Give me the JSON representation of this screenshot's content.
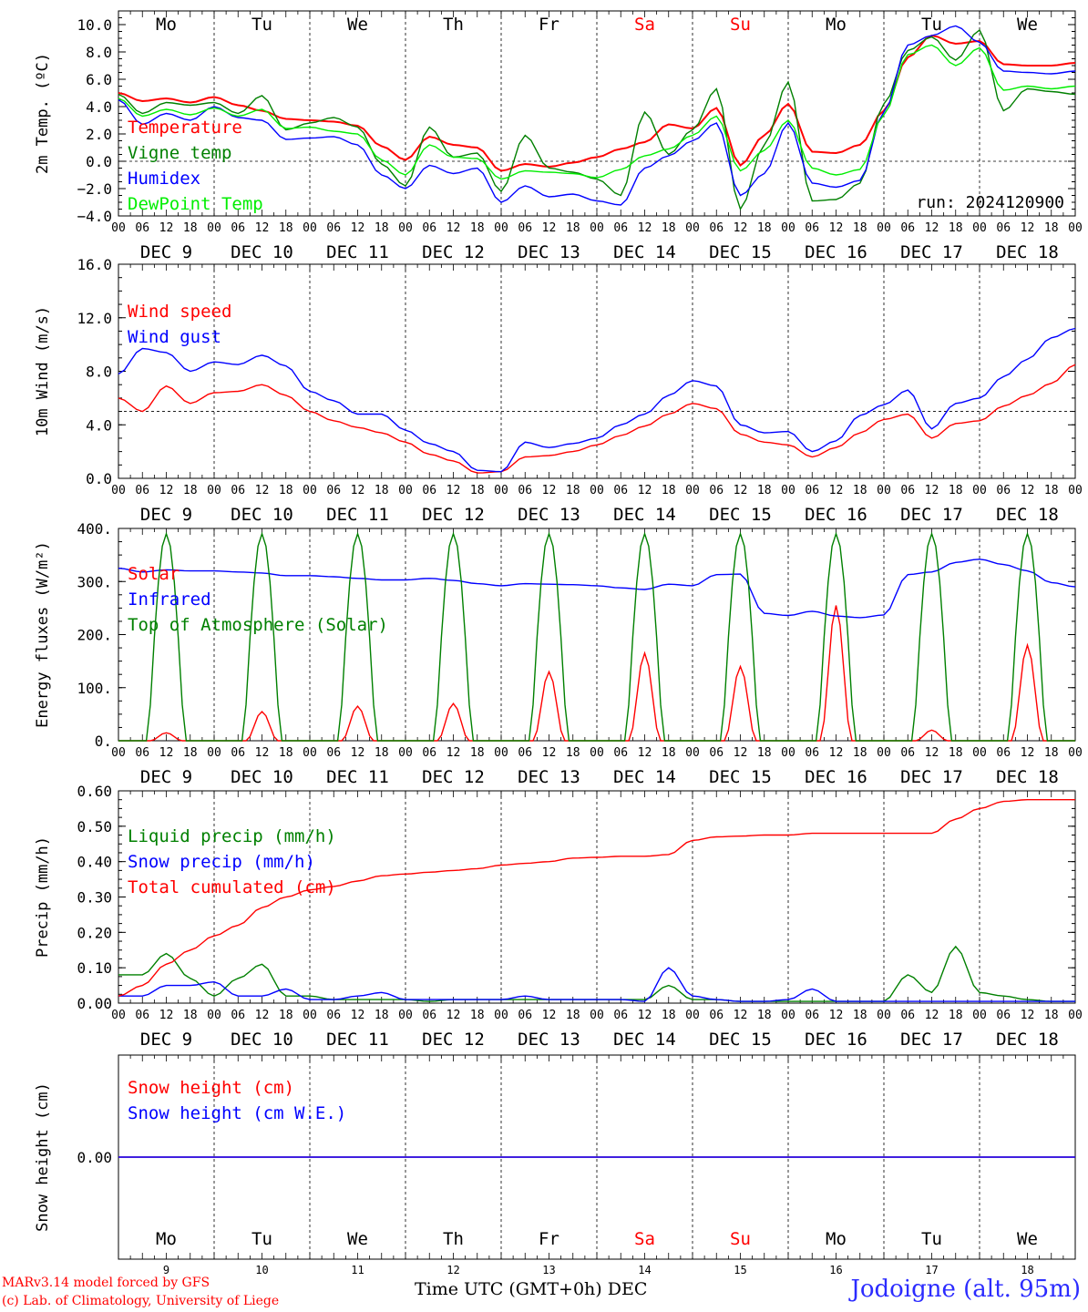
{
  "weekdays": [
    "Mo",
    "Tu",
    "We",
    "Th",
    "Fr",
    "Sa",
    "Su",
    "Mo",
    "Tu",
    "We"
  ],
  "weekday_colors": [
    "#000000",
    "#000000",
    "#000000",
    "#000000",
    "#000000",
    "#ff0000",
    "#ff0000",
    "#000000",
    "#000000",
    "#000000"
  ],
  "day_labels": [
    "DEC  9",
    "DEC 10",
    "DEC 11",
    "DEC 12",
    "DEC 13",
    "DEC 14",
    "DEC 15",
    "DEC 16",
    "DEC 17",
    "DEC 18"
  ],
  "hour_ticks": [
    "00",
    "06",
    "12",
    "18"
  ],
  "last_hour_tick": "00",
  "bottom_day_numbers": [
    "9",
    "10",
    "11",
    "12",
    "13",
    "14",
    "15",
    "16",
    "17",
    "18"
  ],
  "footer": {
    "model": "MARv3.14 model forced by GFS",
    "lab": "(c) Lab. of Climatology, University of Liege",
    "axis_title": "Time UTC (GMT+0h) DEC",
    "station": "Jodoigne (alt. 95m)"
  },
  "chart_data": [
    {
      "type": "line",
      "ylabel": "2m Temp. (ºC)",
      "ylim": [
        -4,
        11
      ],
      "yticks": [
        -4,
        -2,
        0,
        2,
        4,
        6,
        8,
        10
      ],
      "tick_labels": [
        "−4.0",
        "−2.0",
        "0.0",
        "2.0",
        "4.0",
        "6.0",
        "8.0",
        "10.0"
      ],
      "reference_line": 0,
      "annotation": "run: 2024120900",
      "x_unit": "hours since DEC 9 00 UTC",
      "x": [
        0,
        6,
        12,
        18,
        24,
        30,
        36,
        42,
        48,
        54,
        60,
        66,
        72,
        78,
        84,
        90,
        96,
        102,
        108,
        114,
        120,
        126,
        132,
        138,
        144,
        150,
        156,
        162,
        168,
        174,
        180,
        186,
        192,
        198,
        204,
        210,
        216,
        222,
        228,
        234,
        240
      ],
      "series": [
        {
          "name": "Temperature",
          "color": "#ff0000",
          "values": [
            5.0,
            4.4,
            4.6,
            4.3,
            4.7,
            4.1,
            3.7,
            3.1,
            3.0,
            2.9,
            2.6,
            1.1,
            0.1,
            1.8,
            1.2,
            1.0,
            -0.7,
            -0.2,
            -0.4,
            -0.1,
            0.3,
            0.9,
            1.4,
            2.7,
            2.4,
            3.9,
            -0.3,
            1.9,
            4.2,
            0.7,
            0.6,
            1.2,
            3.7,
            7.6,
            9.2,
            8.6,
            8.8,
            7.1,
            7.0,
            7.0,
            7.2
          ]
        },
        {
          "name": "Vigne temp",
          "color": "#008000",
          "values": [
            4.9,
            3.5,
            4.3,
            4.1,
            4.3,
            3.5,
            4.8,
            2.3,
            2.8,
            3.2,
            2.5,
            -0.2,
            -1.8,
            2.5,
            0.3,
            0.6,
            -2.2,
            1.9,
            -0.5,
            -0.8,
            -1.3,
            -2.5,
            3.6,
            0.5,
            2.3,
            5.3,
            -3.5,
            1.2,
            5.8,
            -2.9,
            -2.8,
            -1.6,
            4.2,
            8.1,
            9.1,
            7.4,
            9.6,
            3.7,
            5.3,
            5.1,
            4.9
          ]
        },
        {
          "name": "Humidex",
          "color": "#0000ff",
          "values": [
            4.5,
            2.7,
            3.5,
            3.0,
            4.0,
            3.2,
            3.0,
            1.6,
            1.7,
            1.8,
            1.2,
            -1.0,
            -2.0,
            -0.3,
            -0.9,
            -0.5,
            -3.0,
            -1.8,
            -2.6,
            -2.4,
            -2.9,
            -3.2,
            -0.5,
            0.4,
            1.5,
            2.8,
            -2.5,
            -0.9,
            2.8,
            -1.6,
            -1.9,
            -1.4,
            3.6,
            8.5,
            9.2,
            9.9,
            8.7,
            6.6,
            6.5,
            6.4,
            6.6
          ]
        },
        {
          "name": "DewPoint Temp",
          "color": "#00ee00",
          "values": [
            4.6,
            3.3,
            3.8,
            3.4,
            3.9,
            3.3,
            3.8,
            2.4,
            2.5,
            2.2,
            2.0,
            0.1,
            -1.0,
            1.2,
            0.3,
            0.2,
            -1.3,
            -0.7,
            -0.8,
            -0.9,
            -1.2,
            -0.6,
            0.4,
            0.9,
            1.9,
            3.3,
            -0.7,
            0.8,
            3.0,
            -0.5,
            -1.0,
            -0.6,
            3.4,
            7.8,
            8.5,
            7.0,
            8.3,
            5.2,
            5.5,
            5.3,
            5.5
          ]
        }
      ]
    },
    {
      "type": "line",
      "ylabel": "10m Wind (m/s)",
      "ylim": [
        0,
        16
      ],
      "yticks": [
        0,
        4,
        8,
        12,
        16
      ],
      "tick_labels": [
        "0.0",
        "4.0",
        "8.0",
        "12.0",
        "16.0"
      ],
      "reference_line": 5,
      "x_unit": "hours since DEC 9 00 UTC",
      "x": [
        0,
        6,
        12,
        18,
        24,
        30,
        36,
        42,
        48,
        54,
        60,
        66,
        72,
        78,
        84,
        90,
        96,
        102,
        108,
        114,
        120,
        126,
        132,
        138,
        144,
        150,
        156,
        162,
        168,
        174,
        180,
        186,
        192,
        198,
        204,
        210,
        216,
        222,
        228,
        234,
        240
      ],
      "series": [
        {
          "name": "Wind speed",
          "color": "#ff0000",
          "values": [
            6.0,
            5.0,
            6.9,
            5.6,
            6.4,
            6.5,
            7.0,
            6.2,
            5.0,
            4.3,
            3.8,
            3.4,
            2.7,
            1.8,
            1.3,
            0.4,
            0.5,
            1.6,
            1.7,
            2.0,
            2.5,
            3.2,
            3.9,
            4.8,
            5.6,
            5.2,
            3.3,
            2.7,
            2.5,
            1.6,
            2.3,
            3.4,
            4.4,
            4.8,
            3.0,
            4.1,
            4.3,
            5.4,
            6.2,
            7.1,
            8.5
          ]
        },
        {
          "name": "Wind gust",
          "color": "#0000ff",
          "values": [
            7.8,
            9.7,
            9.4,
            8.0,
            8.7,
            8.5,
            9.2,
            8.4,
            6.5,
            5.8,
            4.8,
            4.8,
            3.6,
            2.6,
            2.0,
            0.6,
            0.5,
            2.7,
            2.3,
            2.6,
            3.0,
            4.0,
            4.8,
            6.2,
            7.3,
            6.9,
            4.0,
            3.4,
            3.5,
            2.0,
            2.8,
            4.7,
            5.5,
            6.6,
            3.7,
            5.6,
            6.0,
            7.6,
            8.9,
            10.5,
            11.2
          ]
        }
      ]
    },
    {
      "type": "line",
      "ylabel": "Energy fluxes (W/m²)",
      "ylim": [
        0,
        400
      ],
      "yticks": [
        0,
        100,
        200,
        300,
        400
      ],
      "tick_labels": [
        "0.",
        "100.",
        "200.",
        "300.",
        "400."
      ],
      "x_unit": "hours since DEC 9 00 UTC",
      "x": [
        0,
        6,
        12,
        18,
        24,
        30,
        36,
        42,
        48,
        54,
        60,
        66,
        72,
        78,
        84,
        90,
        96,
        102,
        108,
        114,
        120,
        126,
        132,
        138,
        144,
        150,
        156,
        162,
        168,
        174,
        180,
        186,
        192,
        198,
        204,
        210,
        216,
        222,
        228,
        234,
        240
      ],
      "series": [
        {
          "name": "Solar",
          "color": "#ff0000",
          "peaks": [
            15,
            55,
            65,
            70,
            130,
            165,
            140,
            255,
            20,
            180
          ]
        },
        {
          "name": "Infrared",
          "color": "#0000ff",
          "values": [
            325,
            318,
            322,
            320,
            320,
            318,
            316,
            311,
            311,
            309,
            306,
            303,
            303,
            306,
            302,
            296,
            292,
            296,
            295,
            294,
            292,
            288,
            285,
            295,
            292,
            313,
            314,
            240,
            236,
            244,
            235,
            232,
            237,
            313,
            318,
            336,
            342,
            332,
            320,
            298,
            290
          ]
        },
        {
          "name": "Top of Atmosphere (Solar)",
          "color": "#008000",
          "peak": 390
        }
      ]
    },
    {
      "type": "line",
      "ylabel": "Precip (mm/h)",
      "ylim": [
        0,
        0.6
      ],
      "yticks": [
        0,
        0.1,
        0.2,
        0.3,
        0.4,
        0.5,
        0.6
      ],
      "tick_labels": [
        "0.00",
        "0.10",
        "0.20",
        "0.30",
        "0.40",
        "0.50",
        "0.60"
      ],
      "x_unit": "hours since DEC 9 00 UTC",
      "x": [
        0,
        6,
        12,
        18,
        24,
        30,
        36,
        42,
        48,
        54,
        60,
        66,
        72,
        78,
        84,
        90,
        96,
        102,
        108,
        114,
        120,
        126,
        132,
        138,
        144,
        150,
        156,
        162,
        168,
        174,
        180,
        186,
        192,
        198,
        204,
        210,
        216,
        222,
        228,
        234,
        240
      ],
      "series": [
        {
          "name": "Liquid precip (mm/h)",
          "color": "#008000",
          "values": [
            0.08,
            0.08,
            0.14,
            0.07,
            0.02,
            0.07,
            0.11,
            0.02,
            0.02,
            0.01,
            0.01,
            0.01,
            0.01,
            0.005,
            0.01,
            0.01,
            0.01,
            0.01,
            0.01,
            0.01,
            0.01,
            0.01,
            0.01,
            0.05,
            0.01,
            0.01,
            0.005,
            0.005,
            0.005,
            0.005,
            0.005,
            0.005,
            0.005,
            0.08,
            0.03,
            0.16,
            0.03,
            0.02,
            0.01,
            0.005,
            0.005
          ]
        },
        {
          "name": "Snow precip (mm/h)",
          "color": "#0000ff",
          "values": [
            0.02,
            0.02,
            0.05,
            0.05,
            0.06,
            0.02,
            0.02,
            0.04,
            0.01,
            0.01,
            0.02,
            0.03,
            0.01,
            0.01,
            0.01,
            0.01,
            0.01,
            0.02,
            0.01,
            0.01,
            0.01,
            0.01,
            0.005,
            0.1,
            0.02,
            0.01,
            0.005,
            0.005,
            0.01,
            0.04,
            0.005,
            0.005,
            0.005,
            0.005,
            0.005,
            0.005,
            0.005,
            0.005,
            0.005,
            0.005,
            0.005
          ]
        },
        {
          "name": "Total cumulated (cm)",
          "color": "#ff0000",
          "values": [
            0.02,
            0.05,
            0.11,
            0.15,
            0.19,
            0.22,
            0.27,
            0.3,
            0.32,
            0.33,
            0.345,
            0.36,
            0.365,
            0.37,
            0.375,
            0.38,
            0.39,
            0.395,
            0.4,
            0.41,
            0.412,
            0.415,
            0.415,
            0.42,
            0.46,
            0.47,
            0.472,
            0.475,
            0.475,
            0.48,
            0.48,
            0.48,
            0.48,
            0.48,
            0.48,
            0.52,
            0.55,
            0.57,
            0.575,
            0.575,
            0.575
          ]
        }
      ]
    },
    {
      "type": "line",
      "ylabel": "Snow height (cm)",
      "yticks": [
        0
      ],
      "tick_labels": [
        "0.00"
      ],
      "x_unit": "hours since DEC 9 00 UTC",
      "x": [
        0,
        240
      ],
      "series": [
        {
          "name": "Snow height (cm)",
          "color": "#ff0000",
          "values": [
            0,
            0
          ]
        },
        {
          "name": "Snow height (cm W.E.)",
          "color": "#0000ff",
          "values": [
            0,
            0
          ]
        }
      ]
    }
  ]
}
